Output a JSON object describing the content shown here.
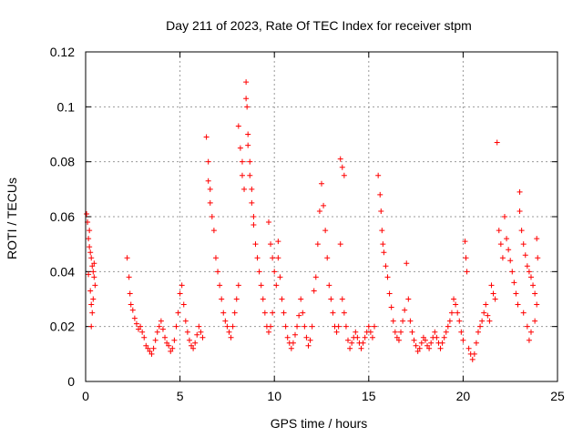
{
  "chart_data": {
    "type": "scatter",
    "title": "Day 211 of 2023, Rate Of TEC Index for receiver stpm",
    "xlabel": "GPS time / hours",
    "ylabel": "ROTI / TECUs",
    "xlim": [
      0,
      25
    ],
    "ylim": [
      0,
      0.12
    ],
    "xticks": [
      "0",
      "5",
      "10",
      "15",
      "20",
      "25"
    ],
    "yticks": [
      "0",
      "0.02",
      "0.04",
      "0.06",
      "0.08",
      "0.1",
      "0.12"
    ],
    "grid": true,
    "marker": "+",
    "color": "#ff0000",
    "series": [
      {
        "points": [
          [
            0.05,
            0.061
          ],
          [
            0.1,
            0.058
          ],
          [
            0.15,
            0.052
          ],
          [
            0.2,
            0.049
          ],
          [
            0.25,
            0.047
          ],
          [
            0.3,
            0.045
          ],
          [
            0.35,
            0.042
          ],
          [
            0.4,
            0.04
          ],
          [
            0.45,
            0.038
          ],
          [
            0.5,
            0.035
          ],
          [
            0.15,
            0.039
          ],
          [
            0.25,
            0.033
          ],
          [
            0.3,
            0.028
          ],
          [
            0.35,
            0.025
          ],
          [
            0.4,
            0.03
          ],
          [
            0.3,
            0.02
          ],
          [
            0.45,
            0.043
          ],
          [
            0.2,
            0.055
          ],
          [
            2.2,
            0.045
          ],
          [
            2.3,
            0.038
          ],
          [
            2.35,
            0.032
          ],
          [
            2.4,
            0.028
          ],
          [
            2.5,
            0.026
          ],
          [
            2.6,
            0.023
          ],
          [
            2.7,
            0.021
          ],
          [
            2.8,
            0.019
          ],
          [
            2.9,
            0.02
          ],
          [
            3.0,
            0.018
          ],
          [
            3.1,
            0.016
          ],
          [
            3.2,
            0.013
          ],
          [
            3.3,
            0.012
          ],
          [
            3.4,
            0.011
          ],
          [
            3.5,
            0.01
          ],
          [
            3.6,
            0.012
          ],
          [
            3.7,
            0.015
          ],
          [
            3.8,
            0.018
          ],
          [
            3.9,
            0.02
          ],
          [
            4.0,
            0.022
          ],
          [
            4.1,
            0.019
          ],
          [
            4.2,
            0.016
          ],
          [
            4.3,
            0.014
          ],
          [
            4.4,
            0.013
          ],
          [
            4.5,
            0.011
          ],
          [
            4.6,
            0.012
          ],
          [
            4.7,
            0.015
          ],
          [
            4.8,
            0.02
          ],
          [
            4.9,
            0.025
          ],
          [
            5.0,
            0.032
          ],
          [
            5.1,
            0.035
          ],
          [
            5.2,
            0.028
          ],
          [
            5.3,
            0.022
          ],
          [
            5.4,
            0.018
          ],
          [
            5.5,
            0.015
          ],
          [
            5.6,
            0.013
          ],
          [
            5.7,
            0.012
          ],
          [
            5.8,
            0.014
          ],
          [
            5.9,
            0.017
          ],
          [
            6.0,
            0.02
          ],
          [
            6.1,
            0.018
          ],
          [
            6.2,
            0.016
          ],
          [
            6.4,
            0.089
          ],
          [
            6.5,
            0.08
          ],
          [
            6.5,
            0.073
          ],
          [
            6.6,
            0.07
          ],
          [
            6.6,
            0.065
          ],
          [
            6.7,
            0.06
          ],
          [
            6.8,
            0.055
          ],
          [
            6.9,
            0.045
          ],
          [
            7.0,
            0.04
          ],
          [
            7.1,
            0.035
          ],
          [
            7.2,
            0.03
          ],
          [
            7.3,
            0.025
          ],
          [
            7.4,
            0.022
          ],
          [
            7.5,
            0.02
          ],
          [
            7.6,
            0.018
          ],
          [
            7.7,
            0.016
          ],
          [
            7.8,
            0.02
          ],
          [
            7.9,
            0.025
          ],
          [
            8.0,
            0.03
          ],
          [
            8.1,
            0.035
          ],
          [
            8.1,
            0.093
          ],
          [
            8.2,
            0.085
          ],
          [
            8.3,
            0.08
          ],
          [
            8.3,
            0.075
          ],
          [
            8.4,
            0.07
          ],
          [
            8.5,
            0.109
          ],
          [
            8.5,
            0.103
          ],
          [
            8.55,
            0.1
          ],
          [
            8.6,
            0.09
          ],
          [
            8.6,
            0.086
          ],
          [
            8.7,
            0.08
          ],
          [
            8.7,
            0.075
          ],
          [
            8.8,
            0.07
          ],
          [
            8.8,
            0.065
          ],
          [
            8.9,
            0.06
          ],
          [
            8.9,
            0.057
          ],
          [
            9.0,
            0.05
          ],
          [
            9.1,
            0.045
          ],
          [
            9.2,
            0.04
          ],
          [
            9.3,
            0.035
          ],
          [
            9.4,
            0.03
          ],
          [
            9.5,
            0.025
          ],
          [
            9.6,
            0.02
          ],
          [
            9.7,
            0.018
          ],
          [
            9.8,
            0.02
          ],
          [
            9.9,
            0.025
          ],
          [
            9.7,
            0.058
          ],
          [
            9.8,
            0.05
          ],
          [
            9.9,
            0.045
          ],
          [
            10.0,
            0.04
          ],
          [
            10.1,
            0.035
          ],
          [
            10.2,
            0.051
          ],
          [
            10.2,
            0.045
          ],
          [
            10.3,
            0.038
          ],
          [
            10.4,
            0.03
          ],
          [
            10.5,
            0.025
          ],
          [
            10.6,
            0.02
          ],
          [
            10.7,
            0.016
          ],
          [
            10.8,
            0.014
          ],
          [
            10.9,
            0.012
          ],
          [
            11.0,
            0.014
          ],
          [
            11.1,
            0.017
          ],
          [
            11.2,
            0.02
          ],
          [
            11.3,
            0.024
          ],
          [
            11.4,
            0.03
          ],
          [
            11.5,
            0.025
          ],
          [
            11.6,
            0.02
          ],
          [
            11.7,
            0.016
          ],
          [
            11.8,
            0.013
          ],
          [
            11.9,
            0.015
          ],
          [
            12.0,
            0.02
          ],
          [
            12.1,
            0.033
          ],
          [
            12.2,
            0.038
          ],
          [
            12.3,
            0.05
          ],
          [
            12.4,
            0.062
          ],
          [
            12.5,
            0.072
          ],
          [
            12.6,
            0.064
          ],
          [
            12.7,
            0.055
          ],
          [
            12.8,
            0.045
          ],
          [
            12.9,
            0.035
          ],
          [
            13.0,
            0.03
          ],
          [
            13.1,
            0.025
          ],
          [
            13.2,
            0.02
          ],
          [
            13.3,
            0.018
          ],
          [
            13.4,
            0.02
          ],
          [
            13.5,
            0.081
          ],
          [
            13.6,
            0.078
          ],
          [
            13.7,
            0.075
          ],
          [
            13.5,
            0.05
          ],
          [
            13.6,
            0.03
          ],
          [
            13.7,
            0.025
          ],
          [
            13.8,
            0.02
          ],
          [
            13.9,
            0.015
          ],
          [
            14.0,
            0.012
          ],
          [
            14.1,
            0.014
          ],
          [
            14.2,
            0.016
          ],
          [
            14.3,
            0.018
          ],
          [
            14.4,
            0.016
          ],
          [
            14.5,
            0.014
          ],
          [
            14.6,
            0.012
          ],
          [
            14.7,
            0.014
          ],
          [
            14.8,
            0.016
          ],
          [
            14.9,
            0.018
          ],
          [
            15.0,
            0.02
          ],
          [
            15.1,
            0.018
          ],
          [
            15.2,
            0.016
          ],
          [
            15.3,
            0.02
          ],
          [
            15.5,
            0.075
          ],
          [
            15.6,
            0.068
          ],
          [
            15.65,
            0.062
          ],
          [
            15.7,
            0.055
          ],
          [
            15.75,
            0.05
          ],
          [
            15.8,
            0.047
          ],
          [
            15.9,
            0.042
          ],
          [
            16.0,
            0.038
          ],
          [
            16.1,
            0.032
          ],
          [
            16.2,
            0.027
          ],
          [
            16.3,
            0.022
          ],
          [
            16.4,
            0.018
          ],
          [
            16.5,
            0.016
          ],
          [
            16.6,
            0.015
          ],
          [
            16.7,
            0.018
          ],
          [
            16.8,
            0.022
          ],
          [
            16.9,
            0.026
          ],
          [
            17.0,
            0.043
          ],
          [
            17.1,
            0.03
          ],
          [
            17.2,
            0.022
          ],
          [
            17.3,
            0.018
          ],
          [
            17.4,
            0.015
          ],
          [
            17.5,
            0.013
          ],
          [
            17.6,
            0.011
          ],
          [
            17.7,
            0.012
          ],
          [
            17.8,
            0.014
          ],
          [
            17.9,
            0.016
          ],
          [
            18.0,
            0.015
          ],
          [
            18.1,
            0.013
          ],
          [
            18.2,
            0.012
          ],
          [
            18.3,
            0.014
          ],
          [
            18.4,
            0.016
          ],
          [
            18.5,
            0.018
          ],
          [
            18.6,
            0.016
          ],
          [
            18.7,
            0.014
          ],
          [
            18.8,
            0.012
          ],
          [
            18.9,
            0.014
          ],
          [
            19.0,
            0.016
          ],
          [
            19.1,
            0.018
          ],
          [
            19.2,
            0.02
          ],
          [
            19.3,
            0.022
          ],
          [
            19.4,
            0.025
          ],
          [
            19.5,
            0.03
          ],
          [
            19.6,
            0.028
          ],
          [
            19.7,
            0.025
          ],
          [
            19.8,
            0.022
          ],
          [
            19.9,
            0.018
          ],
          [
            20.0,
            0.015
          ],
          [
            20.1,
            0.051
          ],
          [
            20.15,
            0.045
          ],
          [
            20.2,
            0.04
          ],
          [
            20.3,
            0.012
          ],
          [
            20.4,
            0.01
          ],
          [
            20.5,
            0.008
          ],
          [
            20.6,
            0.01
          ],
          [
            20.7,
            0.014
          ],
          [
            20.8,
            0.018
          ],
          [
            20.9,
            0.02
          ],
          [
            21.0,
            0.022
          ],
          [
            21.1,
            0.025
          ],
          [
            21.2,
            0.028
          ],
          [
            21.3,
            0.024
          ],
          [
            21.4,
            0.022
          ],
          [
            21.5,
            0.035
          ],
          [
            21.6,
            0.032
          ],
          [
            21.7,
            0.03
          ],
          [
            21.8,
            0.087
          ],
          [
            21.9,
            0.055
          ],
          [
            22.0,
            0.05
          ],
          [
            22.1,
            0.045
          ],
          [
            22.2,
            0.06
          ],
          [
            22.3,
            0.052
          ],
          [
            22.4,
            0.048
          ],
          [
            22.5,
            0.044
          ],
          [
            22.6,
            0.04
          ],
          [
            22.7,
            0.036
          ],
          [
            22.8,
            0.032
          ],
          [
            22.9,
            0.028
          ],
          [
            23.0,
            0.069
          ],
          [
            23.0,
            0.062
          ],
          [
            23.1,
            0.055
          ],
          [
            23.2,
            0.05
          ],
          [
            23.3,
            0.046
          ],
          [
            23.4,
            0.042
          ],
          [
            23.5,
            0.04
          ],
          [
            23.6,
            0.038
          ],
          [
            23.7,
            0.035
          ],
          [
            23.8,
            0.032
          ],
          [
            23.9,
            0.052
          ],
          [
            23.95,
            0.045
          ],
          [
            23.2,
            0.025
          ],
          [
            23.4,
            0.02
          ],
          [
            23.5,
            0.015
          ],
          [
            23.6,
            0.018
          ],
          [
            23.8,
            0.022
          ],
          [
            23.9,
            0.028
          ]
        ]
      }
    ]
  }
}
